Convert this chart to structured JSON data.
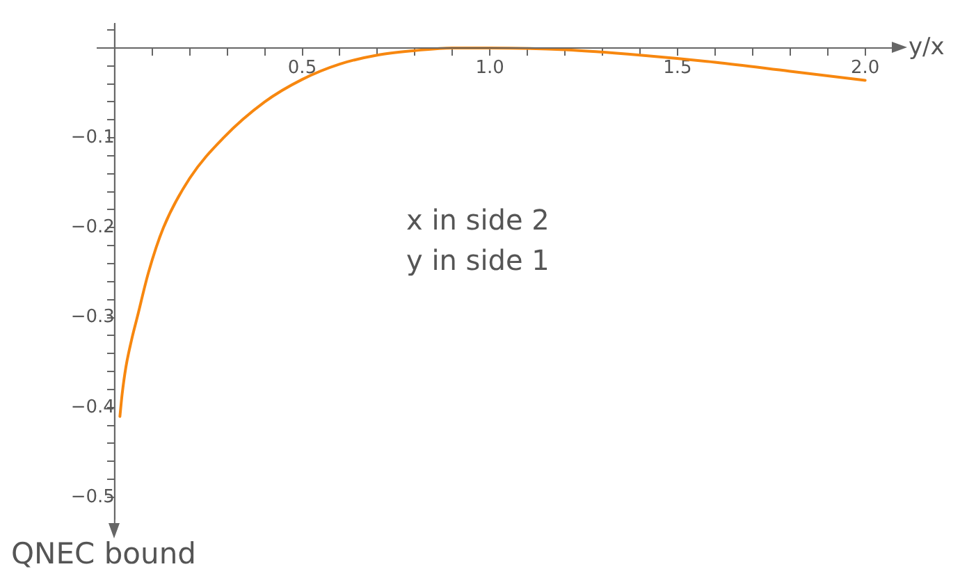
{
  "chart_data": {
    "type": "line",
    "xlabel": "y/x",
    "ylabel": "QNEC bound",
    "annotations": [
      "x in side 2\ny in side 1"
    ],
    "x": [
      0.014,
      0.02,
      0.03,
      0.045,
      0.06,
      0.09,
      0.13,
      0.2,
      0.29,
      0.4,
      0.5,
      0.6,
      0.7,
      0.8,
      0.9,
      1.0,
      1.2,
      1.4,
      1.6,
      1.8,
      2.0
    ],
    "series": [
      {
        "color": "#f7870f",
        "values": [
          -0.41,
          -0.385,
          -0.355,
          -0.325,
          -0.3,
          -0.25,
          -0.2,
          -0.145,
          -0.1,
          -0.06,
          -0.035,
          -0.018,
          -0.008,
          -0.003,
          0,
          0,
          -0.002,
          -0.008,
          -0.016,
          -0.026,
          -0.036
        ]
      }
    ],
    "xlim": [
      -0.046,
      2.06
    ],
    "ylim": [
      -0.524,
      0.027
    ],
    "xticks": [
      {
        "value": 0.1,
        "label": null
      },
      {
        "value": 0.2,
        "label": null
      },
      {
        "value": 0.3,
        "label": null
      },
      {
        "value": 0.4,
        "label": null
      },
      {
        "value": 0.5,
        "label": "0.5"
      },
      {
        "value": 0.6,
        "label": null
      },
      {
        "value": 0.7,
        "label": null
      },
      {
        "value": 0.8,
        "label": null
      },
      {
        "value": 0.9,
        "label": null
      },
      {
        "value": 1.0,
        "label": "1.0"
      },
      {
        "value": 1.1,
        "label": null
      },
      {
        "value": 1.2,
        "label": null
      },
      {
        "value": 1.3,
        "label": null
      },
      {
        "value": 1.4,
        "label": null
      },
      {
        "value": 1.5,
        "label": "1.5"
      },
      {
        "value": 1.6,
        "label": null
      },
      {
        "value": 1.7,
        "label": null
      },
      {
        "value": 1.8,
        "label": null
      },
      {
        "value": 1.9,
        "label": null
      },
      {
        "value": 2.0,
        "label": "2.0"
      }
    ],
    "yticks": [
      {
        "value": 0.02,
        "label": null
      },
      {
        "value": -0.02,
        "label": null
      },
      {
        "value": -0.04,
        "label": null
      },
      {
        "value": -0.06,
        "label": null
      },
      {
        "value": -0.08,
        "label": null
      },
      {
        "value": -0.1,
        "label": "−0.1"
      },
      {
        "value": -0.12,
        "label": null
      },
      {
        "value": -0.14,
        "label": null
      },
      {
        "value": -0.16,
        "label": null
      },
      {
        "value": -0.18,
        "label": null
      },
      {
        "value": -0.2,
        "label": "−0.2"
      },
      {
        "value": -0.22,
        "label": null
      },
      {
        "value": -0.24,
        "label": null
      },
      {
        "value": -0.26,
        "label": null
      },
      {
        "value": -0.28,
        "label": null
      },
      {
        "value": -0.3,
        "label": "−0.3"
      },
      {
        "value": -0.32,
        "label": null
      },
      {
        "value": -0.34,
        "label": null
      },
      {
        "value": -0.36,
        "label": null
      },
      {
        "value": -0.38,
        "label": null
      },
      {
        "value": -0.4,
        "label": "−0.4"
      },
      {
        "value": -0.42,
        "label": null
      },
      {
        "value": -0.44,
        "label": null
      },
      {
        "value": -0.46,
        "label": null
      },
      {
        "value": -0.48,
        "label": null
      },
      {
        "value": -0.5,
        "label": "−0.5"
      }
    ],
    "grid": false,
    "legend": false,
    "marker": "none",
    "line_style": "solid"
  }
}
